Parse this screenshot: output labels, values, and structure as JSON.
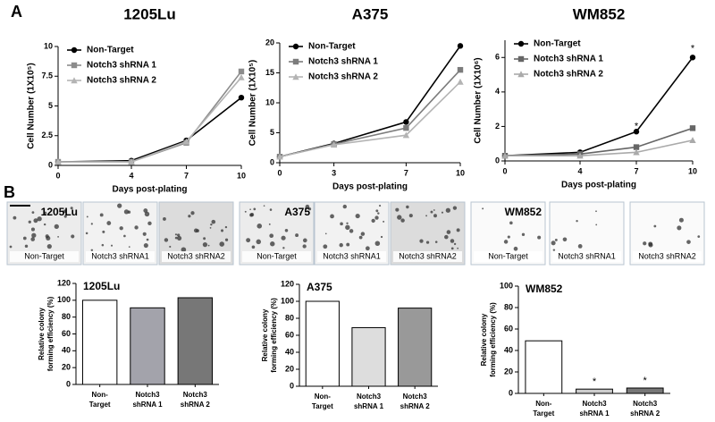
{
  "panel_labels": [
    "A",
    "B"
  ],
  "chart_data": [
    {
      "type": "line",
      "title": "1205Lu",
      "x_label": "Days post-plating",
      "y_label": "Cell Number (1X10⁵)",
      "x": [
        0,
        4,
        7,
        10
      ],
      "xlim": [
        0,
        10
      ],
      "xticks": [
        0,
        4,
        7,
        10
      ],
      "ylim": [
        0,
        10
      ],
      "yticks": [
        0,
        2.5,
        5,
        7.5,
        10
      ],
      "legend": "upper left",
      "series": [
        {
          "name": "Non-Target",
          "color": "#000000",
          "marker": "circle",
          "values": [
            0.3,
            0.4,
            2.1,
            5.7
          ]
        },
        {
          "name": "Notch3 shRNA 1",
          "color": "#8c8c8c",
          "marker": "square",
          "values": [
            0.3,
            0.3,
            1.9,
            7.9
          ]
        },
        {
          "name": "Notch3 shRNA 2",
          "color": "#b4b4b4",
          "marker": "triangle",
          "values": [
            0.3,
            0.3,
            2.0,
            7.4
          ]
        }
      ]
    },
    {
      "type": "line",
      "title": "A375",
      "x_label": "Days post-plating",
      "y_label": "Cell Number (1X10⁵)",
      "x": [
        0,
        3,
        7,
        10
      ],
      "xlim": [
        0,
        10
      ],
      "xticks": [
        0,
        3,
        7,
        10
      ],
      "ylim": [
        0,
        20
      ],
      "yticks": [
        0,
        5,
        10,
        15,
        20
      ],
      "legend": "upper left",
      "series": [
        {
          "name": "Non-Target",
          "color": "#000000",
          "marker": "circle",
          "values": [
            1,
            3.2,
            6.8,
            19.5
          ]
        },
        {
          "name": "Notch3 shRNA 1",
          "color": "#7c7c7c",
          "marker": "square",
          "values": [
            1,
            3.1,
            5.8,
            15.5
          ]
        },
        {
          "name": "Notch3 shRNA 2",
          "color": "#b4b4b4",
          "marker": "triangle",
          "values": [
            1,
            3.0,
            4.6,
            13.5
          ]
        }
      ]
    },
    {
      "type": "line",
      "title": "WM852",
      "x_label": "Days post-plating",
      "y_label": "Cell Number (1X10⁶)",
      "x": [
        0,
        4,
        7,
        10
      ],
      "xlim": [
        0,
        10
      ],
      "xticks": [
        0,
        4,
        7,
        10
      ],
      "ylim": [
        0,
        7
      ],
      "yticks": [
        0,
        2,
        4,
        6
      ],
      "legend": "upper left",
      "series": [
        {
          "name": "Non-Target",
          "color": "#000000",
          "marker": "circle",
          "values": [
            0.3,
            0.5,
            1.7,
            6.0
          ]
        },
        {
          "name": "Notch3 shRNA 1",
          "color": "#666666",
          "marker": "square",
          "values": [
            0.3,
            0.4,
            0.8,
            1.9
          ]
        },
        {
          "name": "Notch3 shRNA 2",
          "color": "#aaaaaa",
          "marker": "triangle",
          "values": [
            0.3,
            0.3,
            0.5,
            1.2
          ]
        }
      ],
      "annotations": [
        {
          "text": "*",
          "x": 7,
          "y": 2.0
        },
        {
          "text": "*",
          "x": 10,
          "y": 6.5
        }
      ]
    },
    {
      "type": "bar",
      "title": "1205Lu",
      "y_label": [
        "Relative colony",
        "forming efficiency (%)"
      ],
      "categories": [
        "Non-Target",
        "Notch3 shRNA 1",
        "Notch3 shRNA 2"
      ],
      "values": [
        100,
        91,
        103
      ],
      "colors": [
        "#ffffff",
        "#a3a3ab",
        "#777777"
      ],
      "ylim": [
        0,
        120
      ],
      "yticks": [
        0,
        20,
        40,
        60,
        80,
        100,
        120
      ]
    },
    {
      "type": "bar",
      "title": "A375",
      "y_label": [
        "Relative colony",
        "forming efficiency (%)"
      ],
      "categories": [
        "Non-Target",
        "Notch3 shRNA 1",
        "Notch3 shRNA 2"
      ],
      "values": [
        100,
        69,
        92
      ],
      "colors": [
        "#ffffff",
        "#dddddd",
        "#999999"
      ],
      "ylim": [
        0,
        120
      ],
      "yticks": [
        0,
        20,
        40,
        60,
        80,
        100,
        120
      ]
    },
    {
      "type": "bar",
      "title": "WM852",
      "y_label": [
        "Relative colony",
        "forming efficiency (%)"
      ],
      "categories": [
        "Non-Target",
        "Notch3 shRNA 1",
        "Notch3 shRNA 2"
      ],
      "values": [
        49,
        4,
        5
      ],
      "colors": [
        "#ffffff",
        "#cccccc",
        "#777777"
      ],
      "ylim": [
        0,
        100
      ],
      "yticks": [
        0,
        20,
        40,
        60,
        80,
        100
      ],
      "annotations": [
        {
          "text": "*",
          "x": "Notch3 shRNA 1"
        },
        {
          "text": "*",
          "x": "Notch3 shRNA 2"
        }
      ]
    }
  ],
  "colony_images": [
    {
      "label": "1205Lu",
      "tiles": [
        "Non-Target",
        "Notch3 shRNA1",
        "Notch3 shRNA2"
      ]
    },
    {
      "label": "A375",
      "tiles": [
        "Non-Target",
        "Notch3 shRNA1",
        "Notch3 shRNA2"
      ]
    },
    {
      "label": "WM852",
      "tiles": [
        "Non-Target",
        "Notch3 shRNA1",
        "Notch3 shRNA2"
      ]
    }
  ]
}
